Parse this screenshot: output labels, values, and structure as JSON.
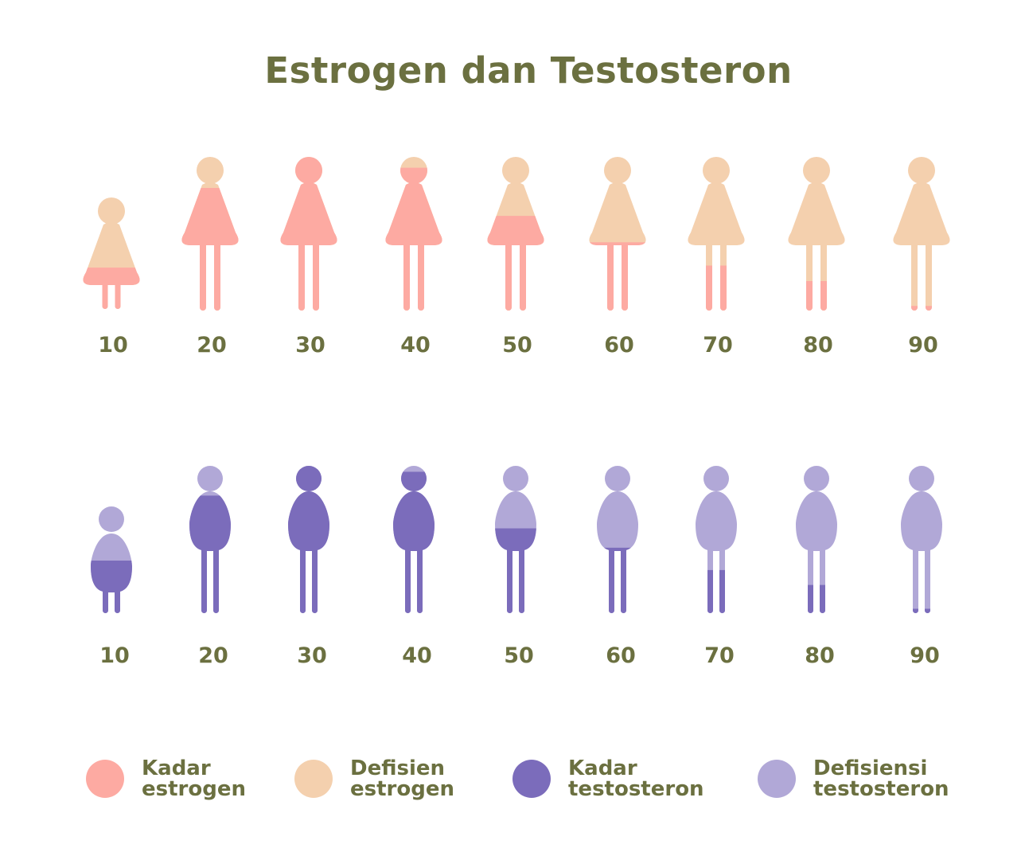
{
  "title": "Estrogen dan Testosteron",
  "colors": {
    "kadar_estrogen": "#fdaaa2",
    "defisien_estrogen": "#f4d0ae",
    "kadar_testosteron": "#7b6cbb",
    "defisiensi_testosteron": "#b1a8d7",
    "text": "#6b7040"
  },
  "estrogen_row": {
    "ages": [
      "10",
      "20",
      "30",
      "40",
      "50",
      "60",
      "70",
      "80",
      "90"
    ],
    "level_fraction": [
      0.38,
      0.8,
      1.0,
      0.93,
      0.62,
      0.45,
      0.3,
      0.2,
      0.04
    ]
  },
  "testosterone_row": {
    "ages": [
      "10",
      "20",
      "30",
      "40",
      "50",
      "60",
      "70",
      "80",
      "90"
    ],
    "level_fraction": [
      0.5,
      0.8,
      1.0,
      0.96,
      0.58,
      0.45,
      0.3,
      0.2,
      0.04
    ]
  },
  "legend": [
    {
      "line1": "Kadar",
      "line2": "estrogen",
      "color_key": "kadar_estrogen"
    },
    {
      "line1": "Defisien",
      "line2": "estrogen",
      "color_key": "defisien_estrogen"
    },
    {
      "line1": "Kadar",
      "line2": "testosteron",
      "color_key": "kadar_testosteron"
    },
    {
      "line1": "Defisiensi",
      "line2": "testosteron",
      "color_key": "defisiensi_testosteron"
    }
  ]
}
